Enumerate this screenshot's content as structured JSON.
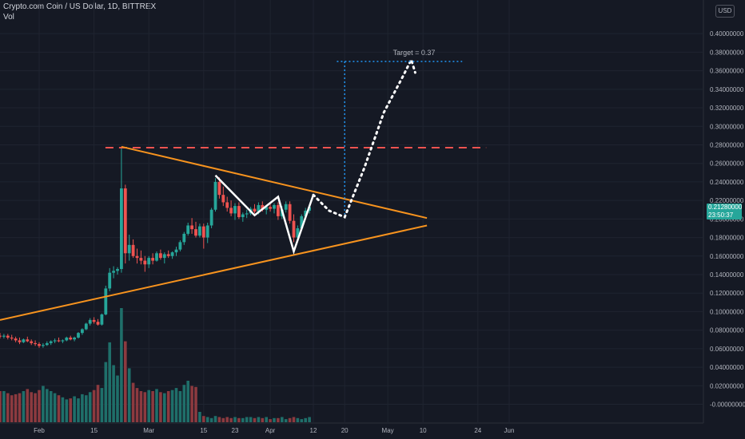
{
  "header": {
    "title": "Crypto.com Coin / US Dollar, 1D, BITTREX",
    "volume_label": "Vol",
    "currency_button": "USD"
  },
  "current_price": {
    "price": "0.21280000",
    "countdown": "23:50:37"
  },
  "colors": {
    "background": "#151924",
    "up": "#26a69a",
    "down": "#ef5350",
    "triangle": "#f7931e",
    "resistance": "#ef5350",
    "pattern": "#ffffff",
    "target": "#2196f3",
    "text": "#b2b5be"
  },
  "chart_data": {
    "type": "candlestick",
    "title": "Crypto.com Coin / US Dollar, 1D, BITTREX",
    "y_axis": {
      "ticks": [
        "0.40000000",
        "0.38000000",
        "0.36000000",
        "0.34000000",
        "0.32000000",
        "0.30000000",
        "0.28000000",
        "0.26000000",
        "0.24000000",
        "0.22000000",
        "0.20000000",
        "0.18000000",
        "0.16000000",
        "0.14000000",
        "0.12000000",
        "0.10000000",
        "0.08000000",
        "0.06000000",
        "0.04000000",
        "0.02000000",
        "-0.00000000"
      ],
      "range": [
        -0.003,
        0.426
      ]
    },
    "x_axis": {
      "ticks": [
        {
          "label": "Feb",
          "date": "2021-02-01"
        },
        {
          "label": "15",
          "date": "2021-02-15"
        },
        {
          "label": "Mar",
          "date": "2021-03-01"
        },
        {
          "label": "15",
          "date": "2021-03-15"
        },
        {
          "label": "23",
          "date": "2021-03-23"
        },
        {
          "label": "Apr",
          "date": "2021-04-01"
        },
        {
          "label": "12",
          "date": "2021-04-12"
        },
        {
          "label": "20",
          "date": "2021-04-20"
        },
        {
          "label": "May",
          "date": "2021-05-01"
        },
        {
          "label": "10",
          "date": "2021-05-10"
        },
        {
          "label": "24",
          "date": "2021-05-24"
        },
        {
          "label": "Jun",
          "date": "2021-06-01"
        }
      ],
      "range": [
        "2021-01-22",
        "2021-06-05"
      ]
    },
    "candles": [
      {
        "date": "2021-01-22",
        "o": 0.074,
        "h": 0.077,
        "l": 0.071,
        "c": 0.073
      },
      {
        "date": "2021-01-23",
        "o": 0.073,
        "h": 0.076,
        "l": 0.071,
        "c": 0.074
      },
      {
        "date": "2021-01-24",
        "o": 0.074,
        "h": 0.076,
        "l": 0.07,
        "c": 0.072
      },
      {
        "date": "2021-01-25",
        "o": 0.072,
        "h": 0.075,
        "l": 0.069,
        "c": 0.071
      },
      {
        "date": "2021-01-26",
        "o": 0.071,
        "h": 0.073,
        "l": 0.067,
        "c": 0.069
      },
      {
        "date": "2021-01-27",
        "o": 0.069,
        "h": 0.072,
        "l": 0.065,
        "c": 0.067
      },
      {
        "date": "2021-01-28",
        "o": 0.067,
        "h": 0.071,
        "l": 0.066,
        "c": 0.07
      },
      {
        "date": "2021-01-29",
        "o": 0.07,
        "h": 0.073,
        "l": 0.067,
        "c": 0.068
      },
      {
        "date": "2021-01-30",
        "o": 0.068,
        "h": 0.07,
        "l": 0.064,
        "c": 0.066
      },
      {
        "date": "2021-01-31",
        "o": 0.066,
        "h": 0.069,
        "l": 0.063,
        "c": 0.065
      },
      {
        "date": "2021-02-01",
        "o": 0.065,
        "h": 0.067,
        "l": 0.061,
        "c": 0.063
      },
      {
        "date": "2021-02-02",
        "o": 0.063,
        "h": 0.066,
        "l": 0.061,
        "c": 0.064
      },
      {
        "date": "2021-02-03",
        "o": 0.064,
        "h": 0.068,
        "l": 0.063,
        "c": 0.066
      },
      {
        "date": "2021-02-04",
        "o": 0.066,
        "h": 0.069,
        "l": 0.064,
        "c": 0.068
      },
      {
        "date": "2021-02-05",
        "o": 0.068,
        "h": 0.071,
        "l": 0.066,
        "c": 0.069
      },
      {
        "date": "2021-02-06",
        "o": 0.069,
        "h": 0.072,
        "l": 0.067,
        "c": 0.068
      },
      {
        "date": "2021-02-07",
        "o": 0.068,
        "h": 0.07,
        "l": 0.066,
        "c": 0.069
      },
      {
        "date": "2021-02-08",
        "o": 0.069,
        "h": 0.073,
        "l": 0.068,
        "c": 0.072
      },
      {
        "date": "2021-02-09",
        "o": 0.072,
        "h": 0.074,
        "l": 0.069,
        "c": 0.07
      },
      {
        "date": "2021-02-10",
        "o": 0.07,
        "h": 0.073,
        "l": 0.068,
        "c": 0.072
      },
      {
        "date": "2021-02-11",
        "o": 0.072,
        "h": 0.078,
        "l": 0.071,
        "c": 0.077
      },
      {
        "date": "2021-02-12",
        "o": 0.077,
        "h": 0.082,
        "l": 0.075,
        "c": 0.081
      },
      {
        "date": "2021-02-13",
        "o": 0.081,
        "h": 0.088,
        "l": 0.08,
        "c": 0.087
      },
      {
        "date": "2021-02-14",
        "o": 0.087,
        "h": 0.093,
        "l": 0.085,
        "c": 0.091
      },
      {
        "date": "2021-02-15",
        "o": 0.091,
        "h": 0.094,
        "l": 0.087,
        "c": 0.089
      },
      {
        "date": "2021-02-16",
        "o": 0.089,
        "h": 0.092,
        "l": 0.085,
        "c": 0.086
      },
      {
        "date": "2021-02-17",
        "o": 0.086,
        "h": 0.098,
        "l": 0.085,
        "c": 0.097
      },
      {
        "date": "2021-02-18",
        "o": 0.097,
        "h": 0.128,
        "l": 0.096,
        "c": 0.125
      },
      {
        "date": "2021-02-19",
        "o": 0.125,
        "h": 0.147,
        "l": 0.122,
        "c": 0.142
      },
      {
        "date": "2021-02-20",
        "o": 0.142,
        "h": 0.149,
        "l": 0.136,
        "c": 0.144
      },
      {
        "date": "2021-02-21",
        "o": 0.144,
        "h": 0.148,
        "l": 0.14,
        "c": 0.146
      },
      {
        "date": "2021-02-22",
        "o": 0.146,
        "h": 0.278,
        "l": 0.142,
        "c": 0.233
      },
      {
        "date": "2021-02-23",
        "o": 0.233,
        "h": 0.237,
        "l": 0.152,
        "c": 0.163
      },
      {
        "date": "2021-02-24",
        "o": 0.163,
        "h": 0.183,
        "l": 0.155,
        "c": 0.172
      },
      {
        "date": "2021-02-25",
        "o": 0.172,
        "h": 0.178,
        "l": 0.158,
        "c": 0.16
      },
      {
        "date": "2021-02-26",
        "o": 0.16,
        "h": 0.168,
        "l": 0.152,
        "c": 0.158
      },
      {
        "date": "2021-02-27",
        "o": 0.158,
        "h": 0.166,
        "l": 0.151,
        "c": 0.155
      },
      {
        "date": "2021-02-28",
        "o": 0.155,
        "h": 0.16,
        "l": 0.143,
        "c": 0.151
      },
      {
        "date": "2021-03-01",
        "o": 0.151,
        "h": 0.16,
        "l": 0.147,
        "c": 0.158
      },
      {
        "date": "2021-03-02",
        "o": 0.158,
        "h": 0.163,
        "l": 0.151,
        "c": 0.155
      },
      {
        "date": "2021-03-03",
        "o": 0.155,
        "h": 0.165,
        "l": 0.154,
        "c": 0.163
      },
      {
        "date": "2021-03-04",
        "o": 0.163,
        "h": 0.167,
        "l": 0.156,
        "c": 0.158
      },
      {
        "date": "2021-03-05",
        "o": 0.158,
        "h": 0.164,
        "l": 0.152,
        "c": 0.162
      },
      {
        "date": "2021-03-06",
        "o": 0.162,
        "h": 0.166,
        "l": 0.158,
        "c": 0.16
      },
      {
        "date": "2021-03-07",
        "o": 0.16,
        "h": 0.165,
        "l": 0.157,
        "c": 0.164
      },
      {
        "date": "2021-03-08",
        "o": 0.164,
        "h": 0.17,
        "l": 0.16,
        "c": 0.167
      },
      {
        "date": "2021-03-09",
        "o": 0.167,
        "h": 0.177,
        "l": 0.165,
        "c": 0.175
      },
      {
        "date": "2021-03-10",
        "o": 0.175,
        "h": 0.186,
        "l": 0.172,
        "c": 0.184
      },
      {
        "date": "2021-03-11",
        "o": 0.184,
        "h": 0.196,
        "l": 0.182,
        "c": 0.193
      },
      {
        "date": "2021-03-12",
        "o": 0.193,
        "h": 0.201,
        "l": 0.184,
        "c": 0.189
      },
      {
        "date": "2021-03-13",
        "o": 0.189,
        "h": 0.197,
        "l": 0.18,
        "c": 0.182
      },
      {
        "date": "2021-03-14",
        "o": 0.182,
        "h": 0.195,
        "l": 0.18,
        "c": 0.192
      },
      {
        "date": "2021-03-15",
        "o": 0.192,
        "h": 0.195,
        "l": 0.168,
        "c": 0.18
      },
      {
        "date": "2021-03-16",
        "o": 0.18,
        "h": 0.196,
        "l": 0.174,
        "c": 0.193
      },
      {
        "date": "2021-03-17",
        "o": 0.193,
        "h": 0.212,
        "l": 0.19,
        "c": 0.21
      },
      {
        "date": "2021-03-18",
        "o": 0.21,
        "h": 0.244,
        "l": 0.208,
        "c": 0.24
      },
      {
        "date": "2021-03-19",
        "o": 0.24,
        "h": 0.245,
        "l": 0.222,
        "c": 0.226
      },
      {
        "date": "2021-03-20",
        "o": 0.226,
        "h": 0.235,
        "l": 0.214,
        "c": 0.218
      },
      {
        "date": "2021-03-21",
        "o": 0.218,
        "h": 0.224,
        "l": 0.208,
        "c": 0.212
      },
      {
        "date": "2021-03-22",
        "o": 0.212,
        "h": 0.22,
        "l": 0.203,
        "c": 0.206
      },
      {
        "date": "2021-03-23",
        "o": 0.206,
        "h": 0.217,
        "l": 0.199,
        "c": 0.214
      },
      {
        "date": "2021-03-24",
        "o": 0.214,
        "h": 0.218,
        "l": 0.2,
        "c": 0.202
      },
      {
        "date": "2021-03-25",
        "o": 0.202,
        "h": 0.207,
        "l": 0.197,
        "c": 0.205
      },
      {
        "date": "2021-03-26",
        "o": 0.205,
        "h": 0.21,
        "l": 0.201,
        "c": 0.206
      },
      {
        "date": "2021-03-27",
        "o": 0.206,
        "h": 0.213,
        "l": 0.204,
        "c": 0.211
      },
      {
        "date": "2021-03-28",
        "o": 0.211,
        "h": 0.216,
        "l": 0.206,
        "c": 0.208
      },
      {
        "date": "2021-03-29",
        "o": 0.208,
        "h": 0.218,
        "l": 0.205,
        "c": 0.215
      },
      {
        "date": "2021-03-30",
        "o": 0.215,
        "h": 0.219,
        "l": 0.208,
        "c": 0.21
      },
      {
        "date": "2021-03-31",
        "o": 0.21,
        "h": 0.215,
        "l": 0.205,
        "c": 0.213
      },
      {
        "date": "2021-04-01",
        "o": 0.213,
        "h": 0.218,
        "l": 0.208,
        "c": 0.211
      },
      {
        "date": "2021-04-02",
        "o": 0.211,
        "h": 0.217,
        "l": 0.206,
        "c": 0.215
      },
      {
        "date": "2021-04-03",
        "o": 0.215,
        "h": 0.218,
        "l": 0.199,
        "c": 0.203
      },
      {
        "date": "2021-04-04",
        "o": 0.203,
        "h": 0.214,
        "l": 0.2,
        "c": 0.21
      },
      {
        "date": "2021-04-05",
        "o": 0.21,
        "h": 0.219,
        "l": 0.207,
        "c": 0.216
      },
      {
        "date": "2021-04-06",
        "o": 0.216,
        "h": 0.219,
        "l": 0.195,
        "c": 0.198
      },
      {
        "date": "2021-04-07",
        "o": 0.198,
        "h": 0.205,
        "l": 0.175,
        "c": 0.18
      },
      {
        "date": "2021-04-08",
        "o": 0.18,
        "h": 0.193,
        "l": 0.178,
        "c": 0.19
      },
      {
        "date": "2021-04-09",
        "o": 0.19,
        "h": 0.205,
        "l": 0.188,
        "c": 0.203
      },
      {
        "date": "2021-04-10",
        "o": 0.203,
        "h": 0.212,
        "l": 0.199,
        "c": 0.209
      },
      {
        "date": "2021-04-11",
        "o": 0.209,
        "h": 0.215,
        "l": 0.206,
        "c": 0.2128
      }
    ],
    "volume": [
      30,
      30,
      28,
      26,
      27,
      28,
      30,
      32,
      29,
      28,
      31,
      35,
      32,
      30,
      28,
      26,
      24,
      22,
      23,
      25,
      23,
      27,
      26,
      29,
      31,
      36,
      33,
      58,
      77,
      55,
      45,
      110,
      78,
      52,
      38,
      33,
      30,
      29,
      31,
      30,
      32,
      29,
      28,
      30,
      31,
      33,
      30,
      36,
      40,
      35,
      34,
      10,
      6,
      5,
      4,
      6,
      5,
      4,
      5,
      4,
      5,
      4,
      4,
      5,
      5,
      4,
      5,
      4,
      5,
      3,
      4,
      4,
      5,
      3,
      4,
      5,
      4,
      3,
      4,
      5,
      6
    ],
    "annotations": {
      "target_label": "Target = 0.37",
      "target_price": 0.37,
      "resistance_price": 0.277,
      "triangle_upper": [
        [
          "2021-02-22",
          0.278
        ],
        [
          "2021-05-11",
          0.201
        ]
      ],
      "triangle_lower": [
        [
          "2021-01-22",
          0.091
        ],
        [
          "2021-05-11",
          0.193
        ]
      ],
      "pattern_path": [
        [
          "2021-03-18",
          0.247
        ],
        [
          "2021-03-28",
          0.204
        ],
        [
          "2021-04-03",
          0.224
        ],
        [
          "2021-04-07",
          0.165
        ],
        [
          "2021-04-12",
          0.226
        ]
      ],
      "projection_path": [
        [
          "2021-04-12",
          0.226
        ],
        [
          "2021-04-16",
          0.209
        ],
        [
          "2021-04-20",
          0.202
        ],
        [
          "2021-04-25",
          0.255
        ],
        [
          "2021-04-30",
          0.315
        ],
        [
          "2021-05-05",
          0.355
        ],
        [
          "2021-05-07",
          0.372
        ],
        [
          "2021-05-08",
          0.358
        ]
      ],
      "target_line_range": [
        "2021-04-18",
        "2021-05-20"
      ],
      "target_vertical_date": "2021-04-20"
    }
  }
}
